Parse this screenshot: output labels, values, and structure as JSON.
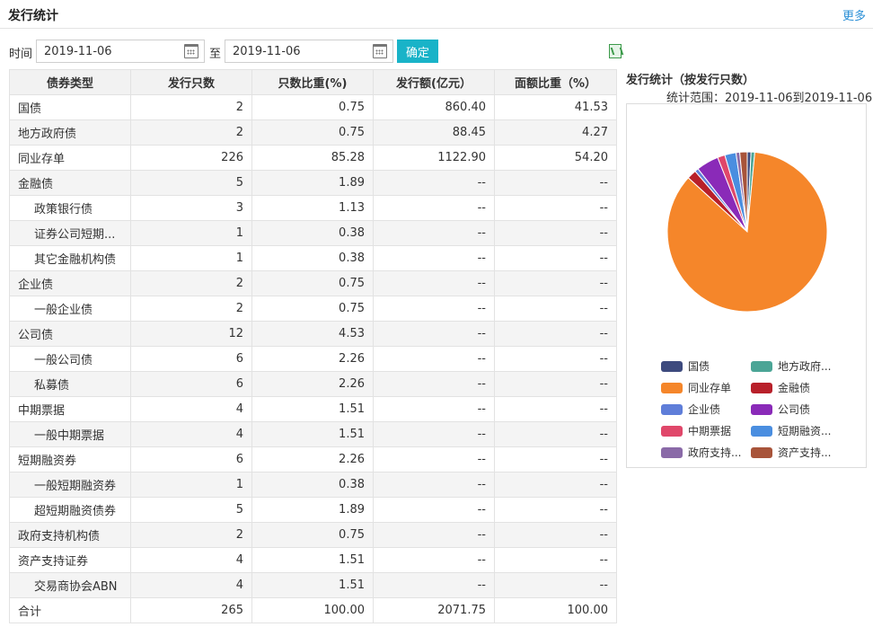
{
  "header": {
    "title": "发行统计",
    "more": "更多"
  },
  "filter": {
    "time_label": "时间",
    "start_date": "2019-11-06",
    "to_label": "至",
    "end_date": "2019-11-06",
    "confirm": "确定"
  },
  "table": {
    "columns": [
      "债券类型",
      "发行只数",
      "只数比重(%)",
      "发行额(亿元）",
      "面额比重（%）"
    ],
    "rows": [
      {
        "name": "国债",
        "indent": false,
        "count": "2",
        "count_pct": "0.75",
        "amount": "860.40",
        "amount_pct": "41.53"
      },
      {
        "name": "地方政府债",
        "indent": false,
        "count": "2",
        "count_pct": "0.75",
        "amount": "88.45",
        "amount_pct": "4.27"
      },
      {
        "name": "同业存单",
        "indent": false,
        "count": "226",
        "count_pct": "85.28",
        "amount": "1122.90",
        "amount_pct": "54.20"
      },
      {
        "name": "金融债",
        "indent": false,
        "count": "5",
        "count_pct": "1.89",
        "amount": "--",
        "amount_pct": "--"
      },
      {
        "name": "政策银行债",
        "indent": true,
        "count": "3",
        "count_pct": "1.13",
        "amount": "--",
        "amount_pct": "--"
      },
      {
        "name": "证券公司短期...",
        "indent": true,
        "count": "1",
        "count_pct": "0.38",
        "amount": "--",
        "amount_pct": "--"
      },
      {
        "name": "其它金融机构债",
        "indent": true,
        "count": "1",
        "count_pct": "0.38",
        "amount": "--",
        "amount_pct": "--"
      },
      {
        "name": "企业债",
        "indent": false,
        "count": "2",
        "count_pct": "0.75",
        "amount": "--",
        "amount_pct": "--"
      },
      {
        "name": "一般企业债",
        "indent": true,
        "count": "2",
        "count_pct": "0.75",
        "amount": "--",
        "amount_pct": "--"
      },
      {
        "name": "公司债",
        "indent": false,
        "count": "12",
        "count_pct": "4.53",
        "amount": "--",
        "amount_pct": "--"
      },
      {
        "name": "一般公司债",
        "indent": true,
        "count": "6",
        "count_pct": "2.26",
        "amount": "--",
        "amount_pct": "--"
      },
      {
        "name": "私募债",
        "indent": true,
        "count": "6",
        "count_pct": "2.26",
        "amount": "--",
        "amount_pct": "--"
      },
      {
        "name": "中期票据",
        "indent": false,
        "count": "4",
        "count_pct": "1.51",
        "amount": "--",
        "amount_pct": "--"
      },
      {
        "name": "一般中期票据",
        "indent": true,
        "count": "4",
        "count_pct": "1.51",
        "amount": "--",
        "amount_pct": "--"
      },
      {
        "name": "短期融资券",
        "indent": false,
        "count": "6",
        "count_pct": "2.26",
        "amount": "--",
        "amount_pct": "--"
      },
      {
        "name": "一般短期融资券",
        "indent": true,
        "count": "1",
        "count_pct": "0.38",
        "amount": "--",
        "amount_pct": "--"
      },
      {
        "name": "超短期融资债券",
        "indent": true,
        "count": "5",
        "count_pct": "1.89",
        "amount": "--",
        "amount_pct": "--"
      },
      {
        "name": "政府支持机构债",
        "indent": false,
        "count": "2",
        "count_pct": "0.75",
        "amount": "--",
        "amount_pct": "--"
      },
      {
        "name": "资产支持证券",
        "indent": false,
        "count": "4",
        "count_pct": "1.51",
        "amount": "--",
        "amount_pct": "--"
      },
      {
        "name": "交易商协会ABN",
        "indent": true,
        "count": "4",
        "count_pct": "1.51",
        "amount": "--",
        "amount_pct": "--"
      },
      {
        "name": "合计",
        "indent": false,
        "count": "265",
        "count_pct": "100.00",
        "amount": "2071.75",
        "amount_pct": "100.00"
      }
    ]
  },
  "chart_data": {
    "type": "pie",
    "title": "发行统计（按发行只数）",
    "subtitle": "统计范围：2019-11-06到2019-11-06",
    "legend_position": "bottom",
    "slices": [
      {
        "label": "国债",
        "value": 2,
        "color": "#3d4a7e"
      },
      {
        "label": "地方政府...",
        "value": 2,
        "color": "#4ba596"
      },
      {
        "label": "同业存单",
        "value": 226,
        "color": "#f5862a"
      },
      {
        "label": "金融债",
        "value": 5,
        "color": "#b8202a"
      },
      {
        "label": "企业债",
        "value": 2,
        "color": "#5f7ed9"
      },
      {
        "label": "公司债",
        "value": 12,
        "color": "#8a2ab8"
      },
      {
        "label": "中期票据",
        "value": 4,
        "color": "#e0476a"
      },
      {
        "label": "短期融资...",
        "value": 6,
        "color": "#4a8ee0"
      },
      {
        "label": "政府支持...",
        "value": 2,
        "color": "#8a6aa8"
      },
      {
        "label": "资产支持...",
        "value": 4,
        "color": "#a8543a"
      }
    ]
  }
}
